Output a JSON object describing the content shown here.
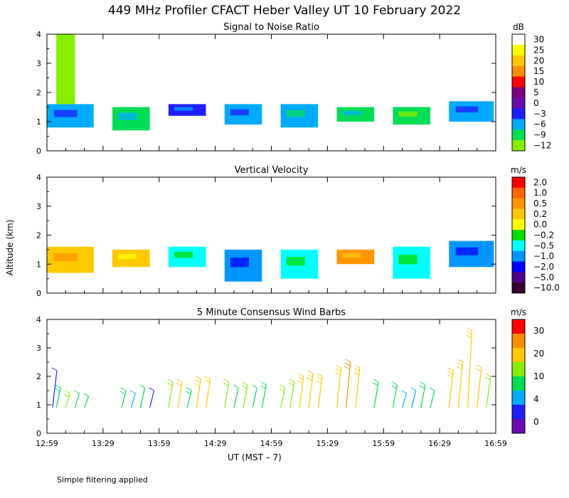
{
  "title": "449 MHz Profiler CFACT Heber Valley UT 10 February 2022",
  "footnote": "Simple filtering applied",
  "x_axis_title": "UT  (MST – 7)",
  "y_axis_title": "Altitude (km)",
  "chart_data": [
    {
      "type": "heatmap",
      "title": "Signal to Noise Ratio",
      "x_ticks": [
        "12:59",
        "13:29",
        "13:59",
        "14:29",
        "14:59",
        "15:29",
        "15:59",
        "16:29",
        "16:59"
      ],
      "y_ticks": [
        "0",
        "1",
        "2",
        "3",
        "4"
      ],
      "ylim": [
        0,
        4
      ],
      "colorbar": {
        "unit": "dB",
        "labels": [
          "30",
          "25",
          "20",
          "15",
          "10",
          "5",
          "0",
          "−3",
          "−6",
          "−9",
          "−12"
        ],
        "colors": [
          "#ffffff",
          "#ffff00",
          "#ffc800",
          "#ff8c00",
          "#ff0000",
          "#800080",
          "#6a0dad",
          "#1e1eff",
          "#00aaff",
          "#00dd55",
          "#88ee00"
        ]
      },
      "blocks": [
        {
          "x0": "12:59",
          "x1": "13:24",
          "y0": 0.8,
          "y1": 1.6,
          "level": "−6"
        },
        {
          "x0": "13:04",
          "x1": "13:14",
          "y0": 1.6,
          "y1": 4.0,
          "level": "−12"
        },
        {
          "x0": "13:34",
          "x1": "13:54",
          "y0": 0.7,
          "y1": 1.5,
          "level": "−9"
        },
        {
          "x0": "14:04",
          "x1": "14:24",
          "y0": 1.2,
          "y1": 1.6,
          "level": "−3"
        },
        {
          "x0": "14:34",
          "x1": "14:54",
          "y0": 0.9,
          "y1": 1.6,
          "level": "−6"
        },
        {
          "x0": "15:04",
          "x1": "15:24",
          "y0": 0.8,
          "y1": 1.6,
          "level": "−6"
        },
        {
          "x0": "15:34",
          "x1": "15:54",
          "y0": 1.0,
          "y1": 1.5,
          "level": "−9"
        },
        {
          "x0": "16:04",
          "x1": "16:24",
          "y0": 0.9,
          "y1": 1.5,
          "level": "−9"
        },
        {
          "x0": "16:34",
          "x1": "16:58",
          "y0": 1.0,
          "y1": 1.7,
          "level": "−6"
        }
      ]
    },
    {
      "type": "heatmap",
      "title": "Vertical Velocity",
      "x_ticks": [
        "12:59",
        "13:29",
        "13:59",
        "14:29",
        "14:59",
        "15:29",
        "15:59",
        "16:29",
        "16:59"
      ],
      "y_ticks": [
        "0",
        "1",
        "2",
        "3",
        "4"
      ],
      "ylim": [
        0,
        4
      ],
      "colorbar": {
        "unit": "m/s",
        "labels": [
          "2.0",
          "1.0",
          "0.5",
          "0.2",
          "0.0",
          "−0.2",
          "−0.5",
          "−1.0",
          "−2.0",
          "−5.0",
          "−10.0"
        ],
        "colors": [
          "#ff0000",
          "#ff6400",
          "#ff9600",
          "#ffc800",
          "#ffff00",
          "#00dd00",
          "#00ffff",
          "#0096ff",
          "#0000ff",
          "#50008c",
          "#32002d"
        ]
      },
      "blocks": [
        {
          "x0": "12:59",
          "x1": "13:24",
          "y0": 0.7,
          "y1": 1.6,
          "level": "0.2"
        },
        {
          "x0": "13:34",
          "x1": "13:54",
          "y0": 0.9,
          "y1": 1.5,
          "level": "0.2"
        },
        {
          "x0": "14:04",
          "x1": "14:24",
          "y0": 0.9,
          "y1": 1.6,
          "level": "−0.5"
        },
        {
          "x0": "14:34",
          "x1": "14:54",
          "y0": 0.4,
          "y1": 1.5,
          "level": "−1.0"
        },
        {
          "x0": "15:04",
          "x1": "15:24",
          "y0": 0.5,
          "y1": 1.5,
          "level": "−0.5"
        },
        {
          "x0": "15:34",
          "x1": "15:54",
          "y0": 1.0,
          "y1": 1.5,
          "level": "0.5"
        },
        {
          "x0": "16:04",
          "x1": "16:24",
          "y0": 0.5,
          "y1": 1.6,
          "level": "−0.5"
        },
        {
          "x0": "16:34",
          "x1": "16:58",
          "y0": 0.9,
          "y1": 1.8,
          "level": "−1.0"
        }
      ]
    },
    {
      "type": "scatter",
      "title": "5 Minute Consensus Wind Barbs",
      "x_ticks": [
        "12:59",
        "13:29",
        "13:59",
        "14:29",
        "14:59",
        "15:29",
        "15:59",
        "16:29",
        "16:59"
      ],
      "y_ticks": [
        "0",
        "1",
        "2",
        "3",
        "4"
      ],
      "ylim": [
        0,
        4
      ],
      "colorbar": {
        "unit": "m/s",
        "labels": [
          "30",
          "20",
          "10",
          "4",
          "0"
        ],
        "colors": [
          "#ff0000",
          "#ff8c00",
          "#ffc800",
          "#88ee00",
          "#00dd55",
          "#00aaff",
          "#1e1eff",
          "#6a0dad"
        ]
      },
      "barbs": [
        {
          "t": "13:02",
          "alt": 2.2,
          "speed": 3
        },
        {
          "t": "13:04",
          "alt": 1.6,
          "speed": 12
        },
        {
          "t": "13:09",
          "alt": 1.4,
          "speed": 13
        },
        {
          "t": "13:14",
          "alt": 1.4,
          "speed": 11
        },
        {
          "t": "13:19",
          "alt": 1.3,
          "speed": 10
        },
        {
          "t": "13:39",
          "alt": 1.5,
          "speed": 12
        },
        {
          "t": "13:44",
          "alt": 1.4,
          "speed": 5
        },
        {
          "t": "13:49",
          "alt": 1.6,
          "speed": 9
        },
        {
          "t": "13:54",
          "alt": 1.5,
          "speed": 4
        },
        {
          "t": "14:04",
          "alt": 1.8,
          "speed": 17
        },
        {
          "t": "14:09",
          "alt": 1.8,
          "speed": 18
        },
        {
          "t": "14:14",
          "alt": 1.5,
          "speed": 12
        },
        {
          "t": "14:19",
          "alt": 1.9,
          "speed": 20
        },
        {
          "t": "14:24",
          "alt": 1.9,
          "speed": 18
        },
        {
          "t": "14:34",
          "alt": 1.8,
          "speed": 16
        },
        {
          "t": "14:39",
          "alt": 1.6,
          "speed": 10
        },
        {
          "t": "14:44",
          "alt": 1.7,
          "speed": 14
        },
        {
          "t": "14:49",
          "alt": 1.6,
          "speed": 11
        },
        {
          "t": "14:54",
          "alt": 1.7,
          "speed": 12
        },
        {
          "t": "15:04",
          "alt": 1.6,
          "speed": 13
        },
        {
          "t": "15:09",
          "alt": 1.8,
          "speed": 16
        },
        {
          "t": "15:14",
          "alt": 2.0,
          "speed": 20
        },
        {
          "t": "15:19",
          "alt": 2.1,
          "speed": 22
        },
        {
          "t": "15:24",
          "alt": 2.0,
          "speed": 20
        },
        {
          "t": "15:34",
          "alt": 2.3,
          "speed": 24
        },
        {
          "t": "15:39",
          "alt": 2.5,
          "speed": 25
        },
        {
          "t": "15:44",
          "alt": 2.3,
          "speed": 22
        },
        {
          "t": "15:54",
          "alt": 1.8,
          "speed": 12
        },
        {
          "t": "16:04",
          "alt": 1.7,
          "speed": 12
        },
        {
          "t": "16:09",
          "alt": 1.4,
          "speed": 6
        },
        {
          "t": "16:14",
          "alt": 1.5,
          "speed": 8
        },
        {
          "t": "16:19",
          "alt": 1.7,
          "speed": 12
        },
        {
          "t": "16:24",
          "alt": 1.5,
          "speed": 10
        },
        {
          "t": "16:34",
          "alt": 2.2,
          "speed": 20
        },
        {
          "t": "16:39",
          "alt": 2.5,
          "speed": 24
        },
        {
          "t": "16:44",
          "alt": 3.6,
          "speed": 22
        },
        {
          "t": "16:49",
          "alt": 2.3,
          "speed": 18
        },
        {
          "t": "16:54",
          "alt": 2.0,
          "speed": 14
        }
      ]
    }
  ]
}
